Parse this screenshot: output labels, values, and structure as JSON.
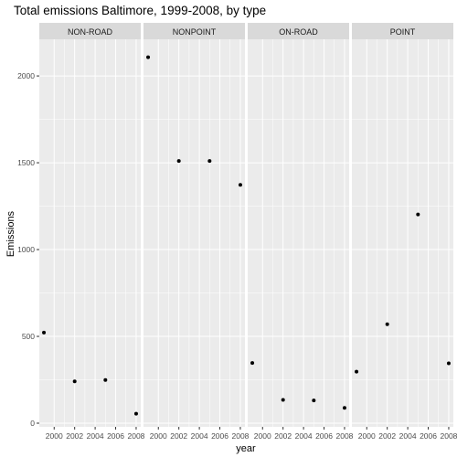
{
  "chart_data": {
    "type": "scatter",
    "title": "Total emissions Baltimore, 1999-2008, by type",
    "xlabel": "year",
    "ylabel": "Emissions",
    "x_ticks": [
      2000,
      2002,
      2004,
      2006,
      2008
    ],
    "y_ticks": [
      0,
      500,
      1000,
      1500,
      2000
    ],
    "xlim": [
      1998.55,
      2008.45
    ],
    "ylim": [
      -21,
      2211
    ],
    "grid": true,
    "facets": [
      {
        "label": "NON-ROAD",
        "points": [
          {
            "x": 1999,
            "y": 522
          },
          {
            "x": 2002,
            "y": 241
          },
          {
            "x": 2005,
            "y": 249
          },
          {
            "x": 2008,
            "y": 55
          }
        ]
      },
      {
        "label": "NONPOINT",
        "points": [
          {
            "x": 1999,
            "y": 2108
          },
          {
            "x": 2002,
            "y": 1510
          },
          {
            "x": 2005,
            "y": 1510
          },
          {
            "x": 2008,
            "y": 1373
          }
        ]
      },
      {
        "label": "ON-ROAD",
        "points": [
          {
            "x": 1999,
            "y": 347
          },
          {
            "x": 2002,
            "y": 134
          },
          {
            "x": 2005,
            "y": 131
          },
          {
            "x": 2008,
            "y": 88
          }
        ]
      },
      {
        "label": "POINT",
        "points": [
          {
            "x": 1999,
            "y": 297
          },
          {
            "x": 2002,
            "y": 570
          },
          {
            "x": 2005,
            "y": 1202
          },
          {
            "x": 2008,
            "y": 345
          }
        ]
      }
    ]
  },
  "colors": {
    "panel_bg": "#ebebeb",
    "strip_bg": "#d9d9d9",
    "grid_major": "#ffffff",
    "point": "#000000",
    "tick_text": "#4d4d4d",
    "text": "#000000"
  }
}
